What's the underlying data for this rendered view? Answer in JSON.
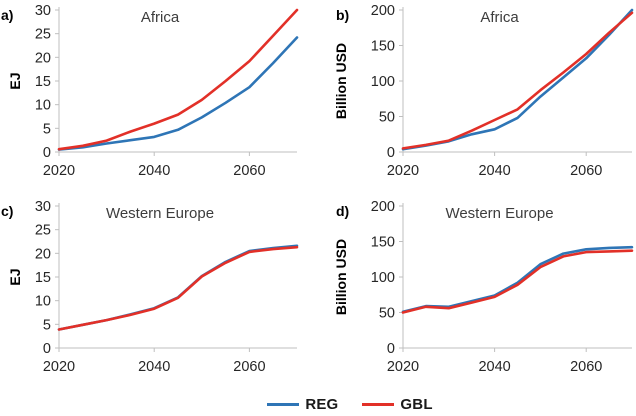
{
  "page": {
    "background": "#ffffff"
  },
  "colors": {
    "axis_line": "#bfbfbf",
    "tick_label": "#262626",
    "chart_title": "#3d3d3d",
    "reg_blue": "#2e75b6",
    "gbl_red": "#e23028"
  },
  "legend": {
    "position": "bottom-center",
    "items": [
      {
        "label": "REG",
        "color": "#2e75b6"
      },
      {
        "label": "GBL",
        "color": "#e23028"
      }
    ]
  },
  "chart_data": [
    {
      "id": "a",
      "type": "line",
      "panel_label": "a)",
      "title": "Africa",
      "xlabel": "",
      "ylabel": "EJ",
      "ylim": [
        0,
        30
      ],
      "ytick_step": 5,
      "xlim": [
        2020,
        2070
      ],
      "xticks": [
        2020,
        2040,
        2060
      ],
      "grid": false,
      "x": [
        2020,
        2025,
        2030,
        2035,
        2040,
        2045,
        2050,
        2055,
        2060,
        2065,
        2070
      ],
      "series": [
        {
          "name": "REG",
          "color": "#2e75b6",
          "values": [
            0.5,
            1.0,
            1.8,
            2.5,
            3.2,
            4.7,
            7.3,
            10.4,
            13.7,
            18.8,
            24.2
          ]
        },
        {
          "name": "GBL",
          "color": "#e23028",
          "values": [
            0.6,
            1.3,
            2.4,
            4.3,
            6.0,
            7.9,
            11.0,
            15.0,
            19.2,
            24.6,
            30.0
          ]
        }
      ]
    },
    {
      "id": "b",
      "type": "line",
      "panel_label": "b)",
      "title": "Africa",
      "xlabel": "",
      "ylabel": "Billion USD",
      "ylim": [
        0,
        200
      ],
      "ytick_step": 50,
      "xlim": [
        2020,
        2070
      ],
      "xticks": [
        2020,
        2040,
        2060
      ],
      "grid": false,
      "x": [
        2020,
        2025,
        2030,
        2035,
        2040,
        2045,
        2050,
        2055,
        2060,
        2065,
        2070
      ],
      "series": [
        {
          "name": "REG",
          "color": "#2e75b6",
          "values": [
            4,
            9,
            15,
            25,
            32,
            48,
            78,
            105,
            132,
            165,
            200
          ]
        },
        {
          "name": "GBL",
          "color": "#e23028",
          "values": [
            5,
            10,
            16,
            30,
            45,
            60,
            87,
            112,
            138,
            168,
            196
          ]
        }
      ]
    },
    {
      "id": "c",
      "type": "line",
      "panel_label": "c)",
      "title": "Western Europe",
      "xlabel": "",
      "ylabel": "EJ",
      "ylim": [
        0,
        30
      ],
      "ytick_step": 5,
      "xlim": [
        2020,
        2070
      ],
      "xticks": [
        2020,
        2040,
        2060
      ],
      "grid": false,
      "x": [
        2020,
        2025,
        2030,
        2035,
        2040,
        2045,
        2050,
        2055,
        2060,
        2065,
        2070
      ],
      "series": [
        {
          "name": "REG",
          "color": "#2e75b6",
          "values": [
            3.9,
            4.9,
            5.9,
            7.1,
            8.4,
            10.7,
            15.2,
            18.2,
            20.5,
            21.1,
            21.6
          ]
        },
        {
          "name": "GBL",
          "color": "#e23028",
          "values": [
            3.9,
            4.9,
            5.9,
            7.0,
            8.3,
            10.6,
            15.1,
            18.0,
            20.3,
            20.9,
            21.3
          ]
        }
      ]
    },
    {
      "id": "d",
      "type": "line",
      "panel_label": "d)",
      "title": "Western Europe",
      "xlabel": "",
      "ylabel": "Billion USD",
      "ylim": [
        0,
        200
      ],
      "ytick_step": 50,
      "xlim": [
        2020,
        2070
      ],
      "xticks": [
        2020,
        2040,
        2060
      ],
      "grid": false,
      "x": [
        2020,
        2025,
        2030,
        2035,
        2040,
        2045,
        2050,
        2055,
        2060,
        2065,
        2070
      ],
      "series": [
        {
          "name": "REG",
          "color": "#2e75b6",
          "values": [
            51,
            59,
            58,
            66,
            74,
            92,
            118,
            133,
            139,
            141,
            142
          ]
        },
        {
          "name": "GBL",
          "color": "#e23028",
          "values": [
            50,
            58,
            56,
            64,
            72,
            89,
            114,
            129,
            135,
            136,
            137
          ]
        }
      ]
    }
  ]
}
